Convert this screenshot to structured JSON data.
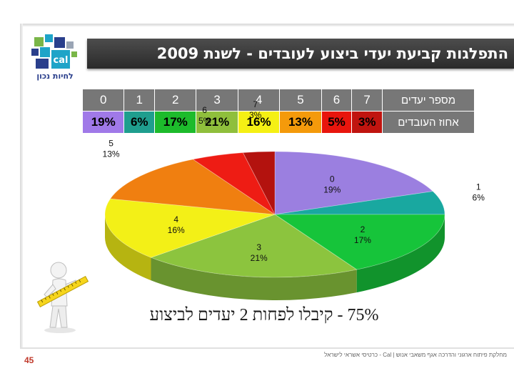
{
  "header": {
    "title": "התפלגות קביעת יעדי ביצוע לעובדים - לשנת 2009",
    "logo_text": "cal",
    "logo_caption": "לחיות נכון"
  },
  "table": {
    "row1_label": "מספר יעדים",
    "row2_label": "אחוז העובדים",
    "columns": [
      {
        "goals": "7",
        "percent": "3%",
        "color": "#c0140f"
      },
      {
        "goals": "6",
        "percent": "5%",
        "color": "#e8150d"
      },
      {
        "goals": "5",
        "percent": "13%",
        "color": "#f49a0b"
      },
      {
        "goals": "4",
        "percent": "16%",
        "color": "#f5f014"
      },
      {
        "goals": "3",
        "percent": "21%",
        "color": "#8fbf3c"
      },
      {
        "goals": "2",
        "percent": "17%",
        "color": "#1dbb2c"
      },
      {
        "goals": "1",
        "percent": "6%",
        "color": "#1f9e8e"
      },
      {
        "goals": "0",
        "percent": "19%",
        "color": "#a079e8"
      }
    ]
  },
  "chart_data": {
    "type": "pie",
    "title": "",
    "slices": [
      {
        "label": "0",
        "value": 19,
        "display": "19%",
        "color": "#9b7fe0"
      },
      {
        "label": "1",
        "value": 6,
        "display": "6%",
        "color": "#19a8a0"
      },
      {
        "label": "2",
        "value": 17,
        "display": "17%",
        "color": "#16c43a"
      },
      {
        "label": "3",
        "value": 21,
        "display": "21%",
        "color": "#8cc43e"
      },
      {
        "label": "4",
        "value": 16,
        "display": "16%",
        "color": "#f3f017"
      },
      {
        "label": "5",
        "value": 13,
        "display": "13%",
        "color": "#f07f10"
      },
      {
        "label": "6",
        "value": 5,
        "display": "5%",
        "color": "#ee1c14"
      },
      {
        "label": "7",
        "value": 3,
        "display": "3%",
        "color": "#b3120e"
      }
    ]
  },
  "summary": "75% - קיבלו לפחות 2 יעדים לביצוע",
  "footer": {
    "slide_number": "45",
    "text": "מחלקת פיתוח ארגוני והדרכה אגף משאבי אנוש | Cal - כרטיסי אשראי לישראל"
  }
}
